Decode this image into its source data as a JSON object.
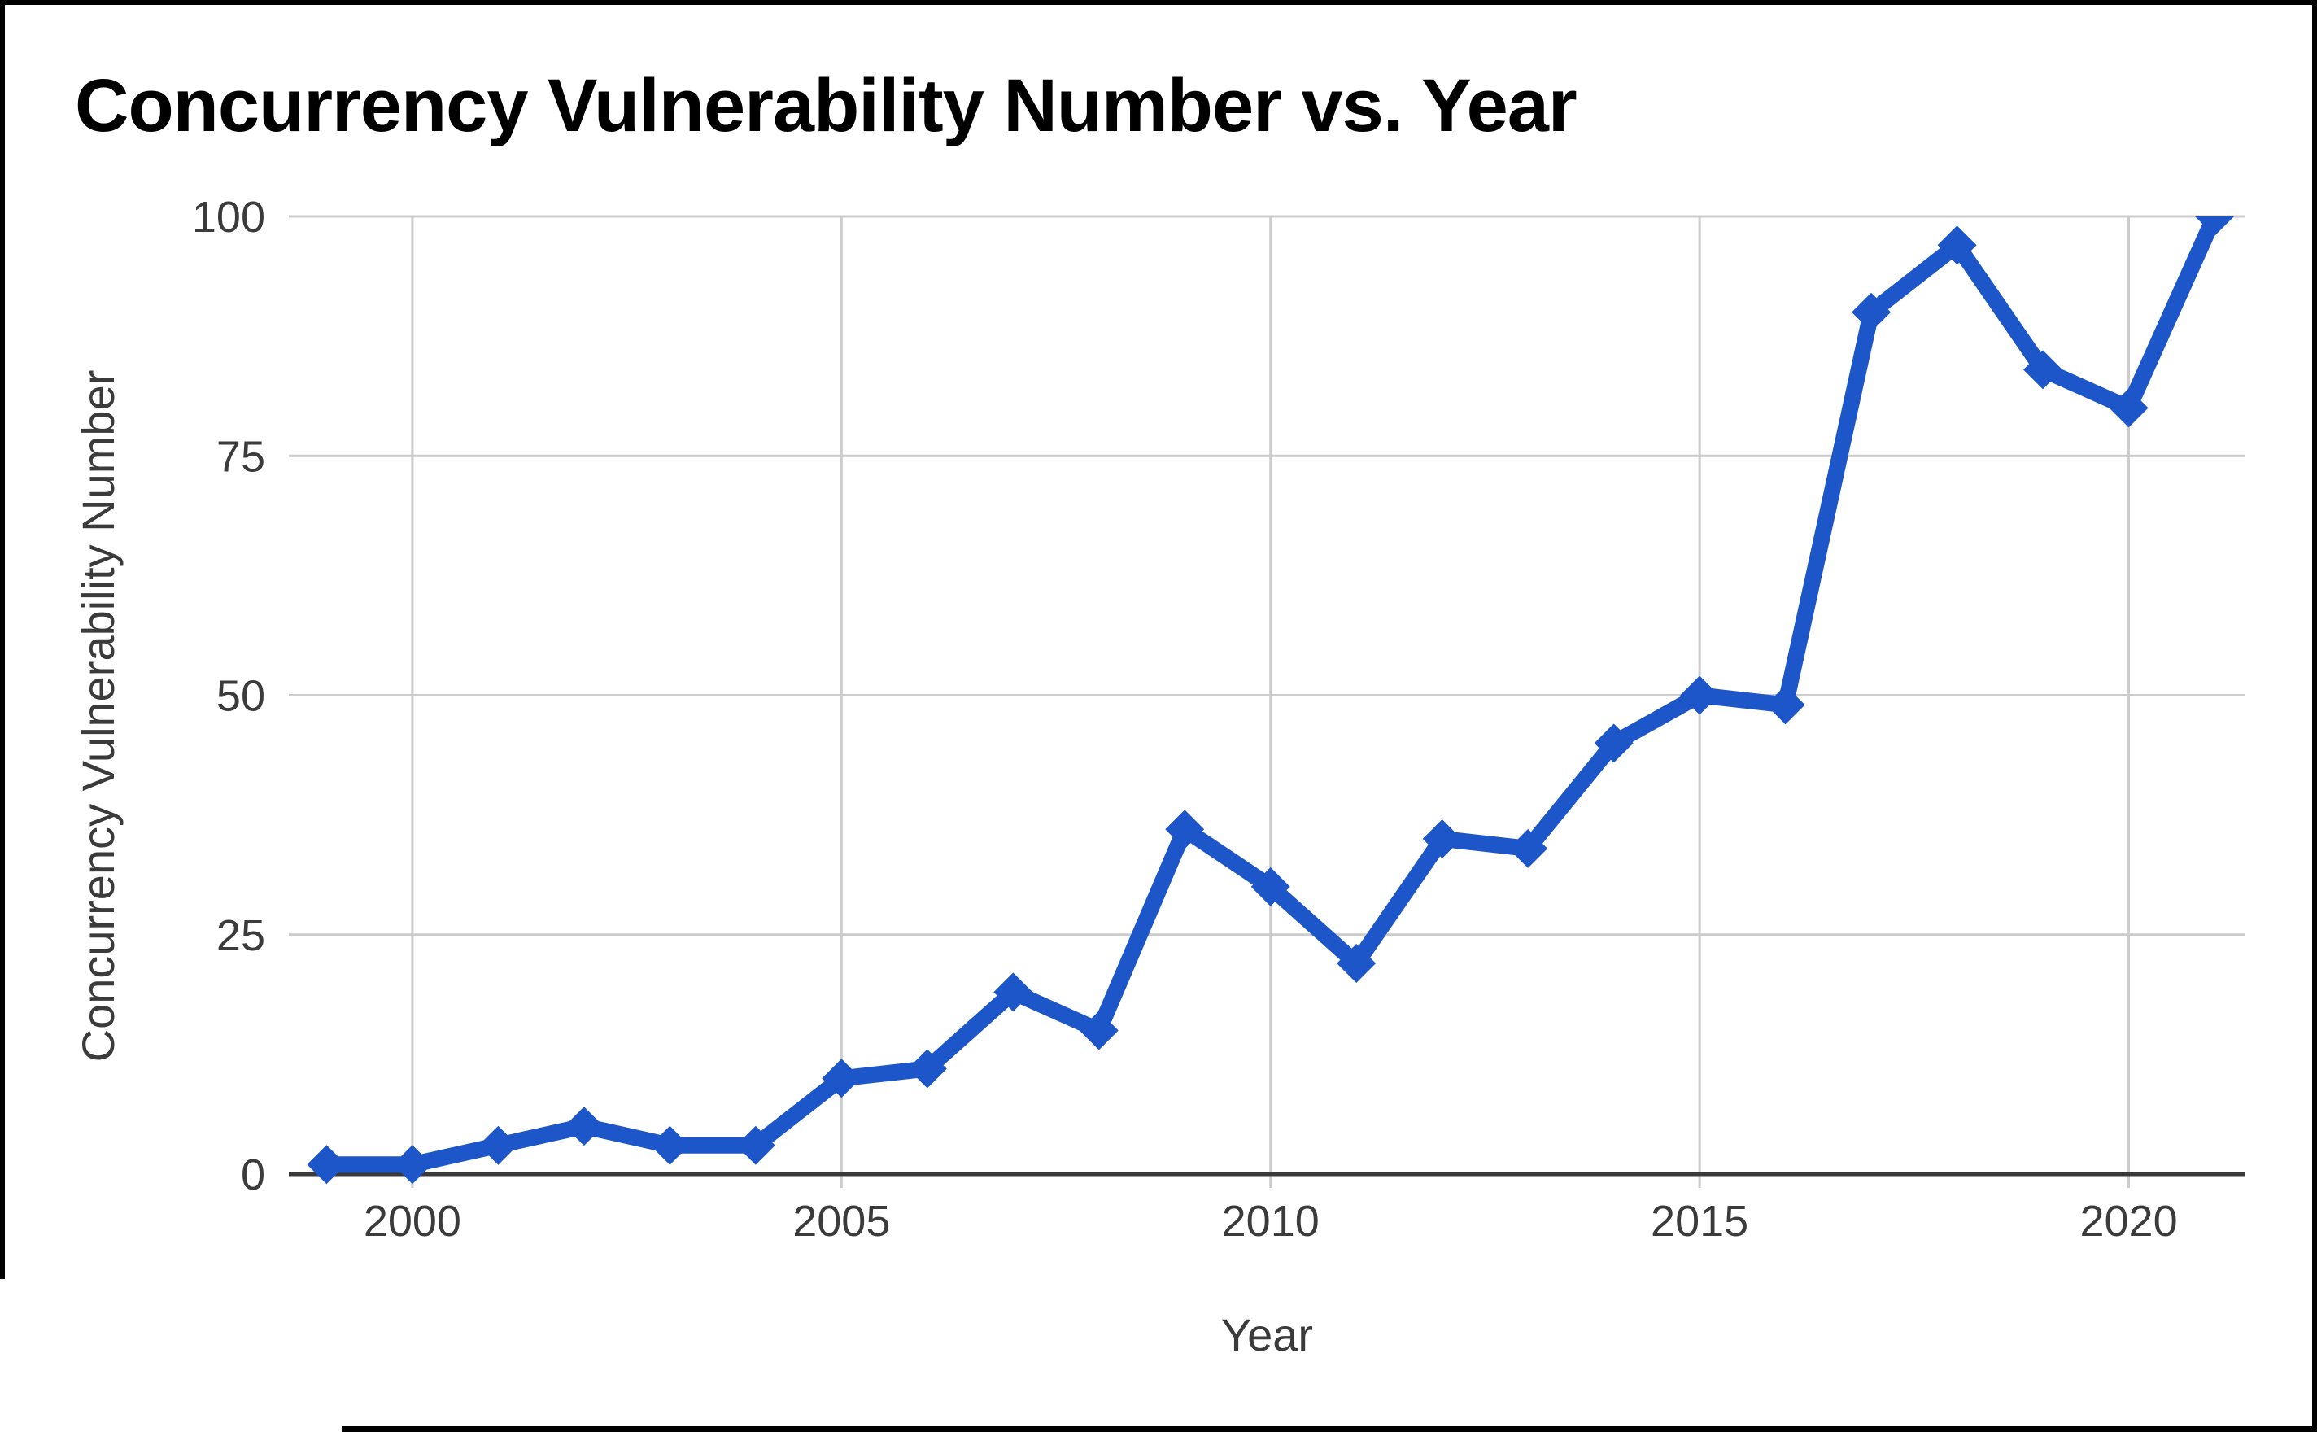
{
  "chart_data": {
    "type": "line",
    "title": "Concurrency Vulnerability Number vs. Year",
    "xlabel": "Year",
    "ylabel": "Concurrency Vulnerability Number",
    "x": [
      1999,
      2000,
      2001,
      2002,
      2003,
      2004,
      2005,
      2006,
      2007,
      2008,
      2009,
      2010,
      2011,
      2012,
      2013,
      2014,
      2015,
      2016,
      2017,
      2018,
      2019,
      2020,
      2021
    ],
    "series": [
      {
        "name": "Concurrency Vulnerability Number",
        "marker": "diamond",
        "color": "#1d56c9",
        "values": [
          1,
          1,
          3,
          5,
          3,
          3,
          10,
          11,
          19,
          15,
          36,
          30,
          22,
          35,
          34,
          45,
          50,
          49,
          90,
          97,
          84,
          80,
          100
        ]
      }
    ],
    "xlim": [
      1998.56,
      2021.36
    ],
    "ylim": [
      0,
      100
    ],
    "xticks": [
      2000,
      2005,
      2010,
      2015,
      2020
    ],
    "yticks": [
      0,
      25,
      50,
      75,
      100
    ],
    "grid": true,
    "legend_position": "none",
    "colors": {
      "gridline": "#cccccc",
      "axis_line": "#3a3a3a",
      "tick_label": "#3b3b3b",
      "axis_title": "#3b3b3b",
      "title": "#000000",
      "background": "#ffffff",
      "frame_border": "#000000"
    }
  }
}
